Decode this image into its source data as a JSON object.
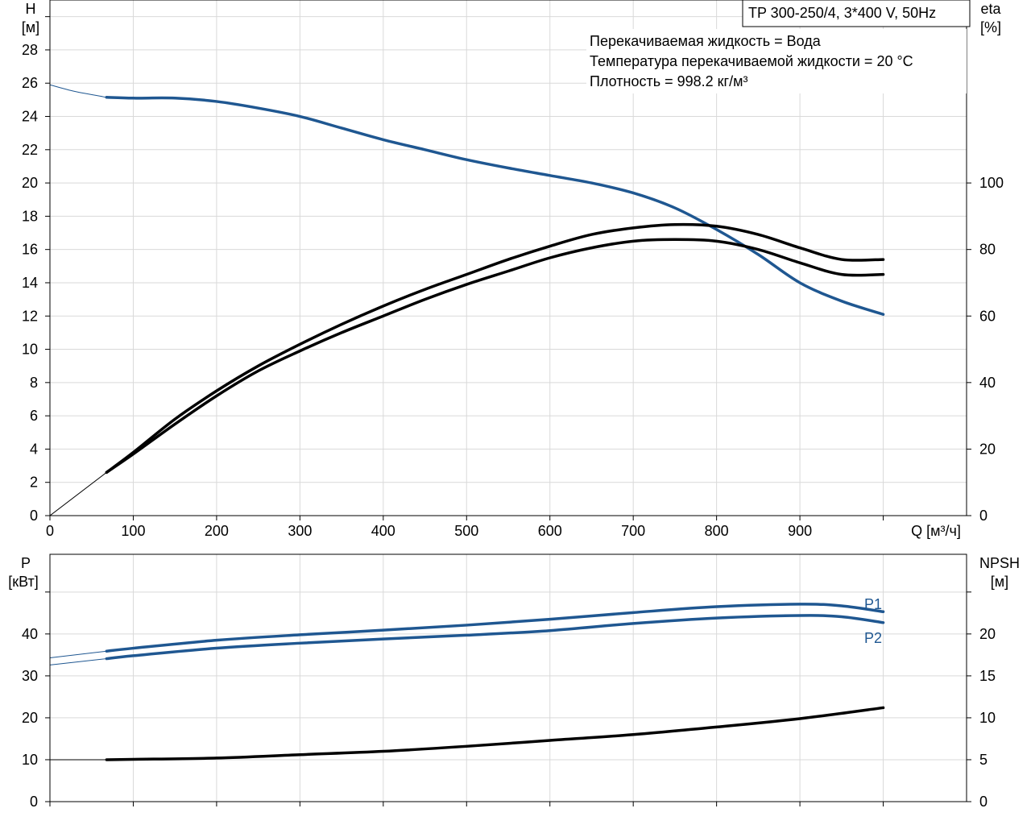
{
  "colors": {
    "blue": "#1f5791",
    "black": "#000000",
    "grid": "#d9d9d9"
  },
  "model_box": "TP 300-250/4, 3*400 V, 50Hz",
  "info_lines": [
    "Перекачиваемая жидкость = Вода",
    "Температура перекачиваемой жидкости = 20 °C",
    "Плотность = 998.2 кг/м³"
  ],
  "chart_data": [
    {
      "type": "line",
      "xlabel": "Q [м³/ч]",
      "ylabel_left": [
        "H",
        "[м]"
      ],
      "ylabel_right": [
        "eta",
        "[%]"
      ],
      "xlim": [
        0,
        1100
      ],
      "ylim_left": [
        0,
        31
      ],
      "ylim_right": [
        0,
        155
      ],
      "x_ticks": [
        "0",
        "100",
        "200",
        "300",
        "400",
        "500",
        "600",
        "700",
        "800",
        "900"
      ],
      "y_left_ticks": [
        "0",
        "2",
        "4",
        "6",
        "8",
        "10",
        "12",
        "14",
        "16",
        "18",
        "20",
        "22",
        "24",
        "26",
        "28"
      ],
      "y_right_ticks": [
        "0",
        "20",
        "40",
        "60",
        "80",
        "100"
      ],
      "grid": true,
      "series": [
        {
          "axis": "left",
          "color": "blue",
          "x": [
            0,
            30,
            68
          ],
          "y": [
            25.9,
            25.5,
            25.15
          ]
        },
        {
          "axis": "left",
          "color": "blue",
          "x": [
            68,
            100,
            150,
            200,
            250,
            300,
            350,
            400,
            450,
            500,
            550,
            600,
            650,
            700,
            750,
            800,
            850,
            900,
            950,
            1000
          ],
          "y": [
            25.15,
            25.1,
            25.1,
            24.9,
            24.5,
            24.0,
            23.3,
            22.6,
            22.0,
            21.4,
            20.9,
            20.45,
            20.0,
            19.4,
            18.5,
            17.2,
            15.7,
            14.0,
            12.9,
            12.1
          ]
        },
        {
          "axis": "right",
          "color": "black",
          "x": [
            0,
            68
          ],
          "y": [
            0,
            13
          ]
        },
        {
          "axis": "right",
          "color": "black",
          "x": [
            68,
            100,
            150,
            200,
            250,
            300,
            350,
            400,
            450,
            500,
            550,
            600,
            650,
            700,
            750,
            800,
            850,
            900,
            950,
            1000
          ],
          "y": [
            13,
            19,
            29,
            37.5,
            45,
            51.5,
            57.5,
            63,
            68,
            72.5,
            77,
            81,
            84.5,
            86.5,
            87.5,
            87,
            84.5,
            80.5,
            77,
            77
          ]
        },
        {
          "axis": "right",
          "color": "black",
          "x": [
            68,
            100,
            150,
            200,
            250,
            300,
            350,
            400,
            450,
            500,
            550,
            600,
            650,
            700,
            750,
            800,
            850,
            900,
            950,
            1000
          ],
          "y": [
            13,
            18.5,
            27.5,
            36,
            43.5,
            49.5,
            55,
            60,
            65,
            69.5,
            73.5,
            77.5,
            80.5,
            82.5,
            83,
            82.5,
            80,
            76,
            72.5,
            72.5
          ]
        }
      ]
    },
    {
      "type": "line",
      "ylabel_left": [
        "P",
        "[кВт]"
      ],
      "ylabel_right": [
        "NPSH",
        "[м]"
      ],
      "xlim": [
        0,
        1100
      ],
      "ylim_left": [
        0,
        59
      ],
      "ylim_right": [
        0,
        29.5
      ],
      "y_left_ticks": [
        "0",
        "10",
        "20",
        "30",
        "40"
      ],
      "y_right_ticks": [
        "0",
        "5",
        "10",
        "15",
        "20"
      ],
      "grid": true,
      "series": [
        {
          "name": "P1",
          "axis": "left",
          "color": "blue",
          "x": [
            0,
            68
          ],
          "y": [
            34.3,
            35.9
          ]
        },
        {
          "name": "P1",
          "axis": "left",
          "color": "blue",
          "x": [
            68,
            100,
            200,
            300,
            400,
            500,
            600,
            700,
            800,
            900,
            950,
            1000
          ],
          "y": [
            35.9,
            36.6,
            38.5,
            39.8,
            40.9,
            42.1,
            43.5,
            45.1,
            46.5,
            47.1,
            46.7,
            45.3
          ]
        },
        {
          "name": "P2",
          "axis": "left",
          "color": "blue",
          "x": [
            0,
            68
          ],
          "y": [
            32.6,
            34.1
          ]
        },
        {
          "name": "P2",
          "axis": "left",
          "color": "blue",
          "x": [
            68,
            100,
            200,
            300,
            400,
            500,
            600,
            700,
            800,
            900,
            950,
            1000
          ],
          "y": [
            34.1,
            34.8,
            36.6,
            37.8,
            38.8,
            39.7,
            40.8,
            42.5,
            43.8,
            44.4,
            44.1,
            42.7
          ]
        },
        {
          "axis": "right",
          "color": "black",
          "x": [
            0,
            68
          ],
          "y": [
            5.0,
            5.0
          ]
        },
        {
          "axis": "right",
          "color": "black",
          "x": [
            68,
            100,
            200,
            300,
            400,
            500,
            600,
            700,
            800,
            900,
            1000
          ],
          "y": [
            5.0,
            5.05,
            5.2,
            5.6,
            6.0,
            6.6,
            7.3,
            8.0,
            8.9,
            9.9,
            11.2
          ]
        }
      ]
    }
  ]
}
